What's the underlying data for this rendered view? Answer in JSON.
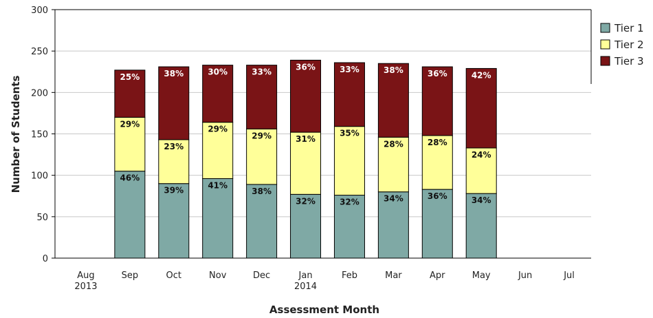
{
  "chart_data": {
    "type": "stacked-bar",
    "x_label": "Assessment Month",
    "y_label": "Number of Students",
    "categories": [
      "Aug",
      "Sep",
      "Oct",
      "Nov",
      "Dec",
      "Jan",
      "Feb",
      "Mar",
      "Apr",
      "May",
      "Jun",
      "Jul"
    ],
    "x_sublabels": [
      "2013",
      null,
      null,
      null,
      null,
      "2014",
      null,
      null,
      null,
      null,
      null,
      null
    ],
    "series": [
      {
        "name": "Tier 1",
        "color": "#7fa9a5",
        "values": [
          null,
          105,
          90,
          96,
          89,
          77,
          76,
          80,
          83,
          78,
          null,
          null
        ],
        "value_labels": [
          null,
          "46%",
          "39%",
          "41%",
          "38%",
          "32%",
          "32%",
          "34%",
          "36%",
          "34%",
          null,
          null
        ]
      },
      {
        "name": "Tier 2",
        "color": "#ffff99",
        "values": [
          null,
          65,
          53,
          68,
          67,
          75,
          83,
          66,
          65,
          55,
          null,
          null
        ],
        "value_labels": [
          null,
          "29%",
          "23%",
          "29%",
          "29%",
          "31%",
          "35%",
          "28%",
          "28%",
          "24%",
          null,
          null
        ]
      },
      {
        "name": "Tier 3",
        "color": "#7a1416",
        "values": [
          null,
          57,
          88,
          69,
          77,
          87,
          77,
          89,
          83,
          96,
          null,
          null
        ],
        "value_labels": [
          null,
          "25%",
          "38%",
          "30%",
          "33%",
          "36%",
          "33%",
          "38%",
          "36%",
          "42%",
          null,
          null
        ]
      }
    ],
    "ylim": [
      0,
      300
    ],
    "yticks": [
      0,
      50,
      100,
      150,
      200,
      250,
      300
    ],
    "grid": true,
    "legend": "right"
  }
}
